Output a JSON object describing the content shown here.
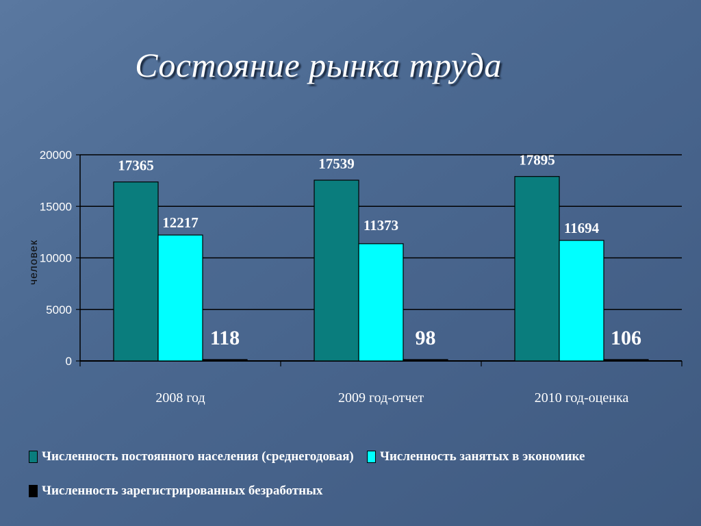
{
  "title": "Состояние рынка труда",
  "chart_data": {
    "type": "bar",
    "ylabel": "человек",
    "xlabel": "",
    "ylim": [
      0,
      20000
    ],
    "yticks": [
      0,
      5000,
      10000,
      15000,
      20000
    ],
    "grid": true,
    "legend_position": "bottom",
    "categories": [
      "2008 год",
      "2009 год-отчет",
      "2010 год-оценка"
    ],
    "series": [
      {
        "name": "Численность постоянного населения (среднегодовая)",
        "values": [
          17365,
          17539,
          17895
        ],
        "color": "#0a7d7d"
      },
      {
        "name": "Численность занятых в экономике",
        "values": [
          12217,
          11373,
          11694
        ],
        "color": "#00ffff"
      },
      {
        "name": "Численность зарегистрированных безработных",
        "values": [
          118,
          98,
          106
        ],
        "color": "#000000"
      }
    ]
  }
}
